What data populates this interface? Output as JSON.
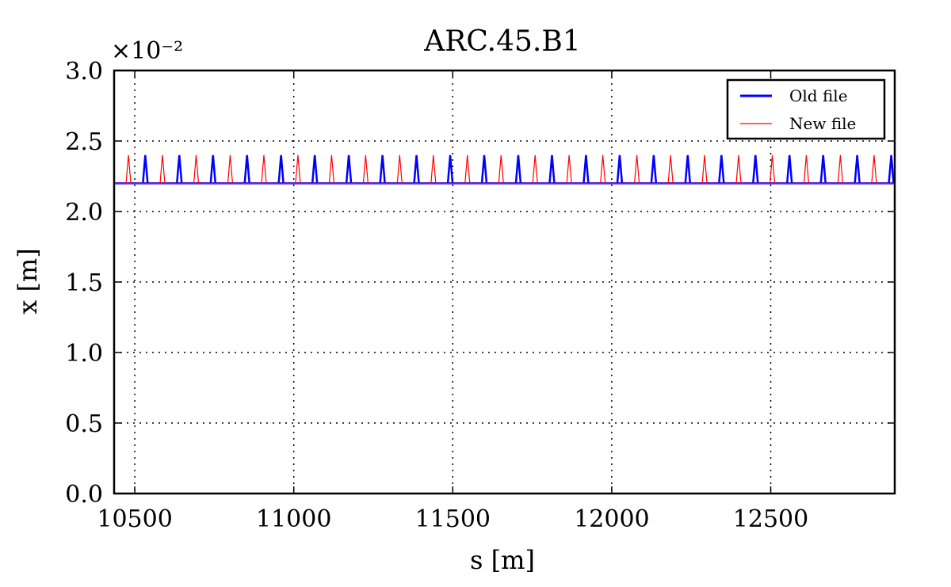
{
  "chart_data": {
    "type": "line",
    "title": "ARC.45.B1",
    "xlabel": "s [m]",
    "ylabel": "x [m]",
    "offset_text": "×10⁻²",
    "xlim": [
      10435,
      12890
    ],
    "ylim": [
      0.0,
      3.0
    ],
    "xticks": [
      10500,
      11000,
      11500,
      12000,
      12500
    ],
    "yticks": [
      0.0,
      0.5,
      1.0,
      1.5,
      2.0,
      2.5,
      3.0
    ],
    "xtick_labels": [
      "10500",
      "11000",
      "11500",
      "12000",
      "12500"
    ],
    "ytick_labels": [
      "0.0",
      "0.5",
      "1.0",
      "1.5",
      "2.0",
      "2.5",
      "3.0"
    ],
    "grid": true,
    "legend_position": "top-right",
    "series": [
      {
        "name": "Old file",
        "color": "#0000ff",
        "baseline": 2.2,
        "spike_peak": 2.4,
        "spike_s": [
          10533,
          10640,
          10746,
          10853,
          10960,
          11066,
          11173,
          11279,
          11386,
          11492,
          11599,
          11706,
          11812,
          11919,
          12025,
          12132,
          12239,
          12345,
          12452,
          12559,
          12665,
          12772,
          12879
        ]
      },
      {
        "name": "New file",
        "color": "#ff0000",
        "baseline": 2.2,
        "spike_peak": 2.4,
        "spike_s": [
          10480,
          10587,
          10693,
          10800,
          10906,
          11013,
          11119,
          11226,
          11333,
          11439,
          11546,
          11652,
          11759,
          11866,
          11972,
          12079,
          12185,
          12292,
          12399,
          12505,
          12612,
          12719,
          12825
        ]
      }
    ]
  }
}
